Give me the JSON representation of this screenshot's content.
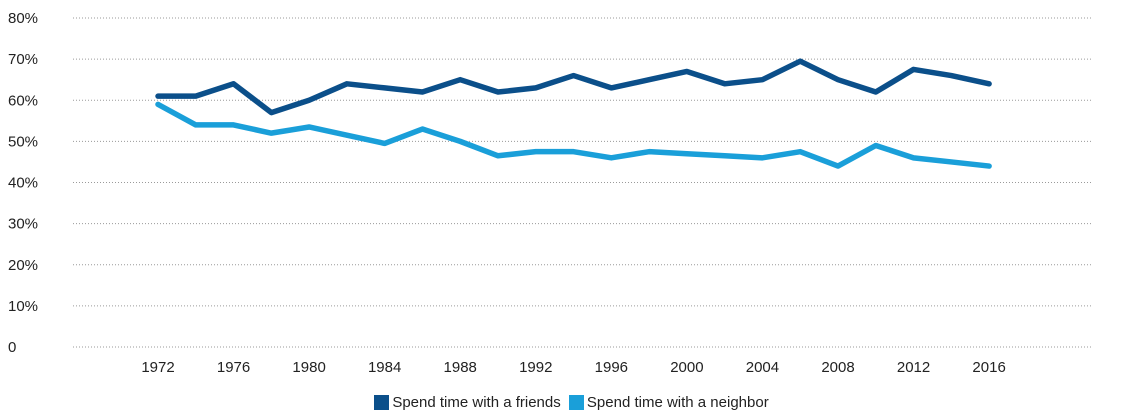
{
  "chart_data": {
    "type": "line",
    "x": [
      1972,
      1974,
      1976,
      1978,
      1980,
      1982,
      1984,
      1986,
      1988,
      1990,
      1992,
      1994,
      1996,
      1998,
      2000,
      2002,
      2004,
      2006,
      2008,
      2010,
      2012,
      2014,
      2016
    ],
    "xticks": [
      "1972",
      "1976",
      "1980",
      "1984",
      "1988",
      "1992",
      "1996",
      "2000",
      "2004",
      "2008",
      "2012",
      "2016"
    ],
    "xlim": [
      1967.5,
      2021.5
    ],
    "yticks": [
      "0",
      "10%",
      "20%",
      "30%",
      "40%",
      "50%",
      "60%",
      "70%",
      "80%"
    ],
    "ylim": [
      0,
      80
    ],
    "grid": "horizontal dotted",
    "legend_position": "bottom-center",
    "series": [
      {
        "name": "Spend time with a friends",
        "color": "#0b4f8a",
        "values": [
          61,
          61,
          64,
          57,
          60,
          64,
          63,
          62,
          65,
          62,
          63,
          66,
          63,
          65,
          67,
          64,
          65,
          69.5,
          65,
          62,
          67.5,
          66,
          64
        ]
      },
      {
        "name": "Spend time with a neighbor",
        "color": "#1a9fd9",
        "values": [
          59,
          54,
          54,
          52,
          53.5,
          51.5,
          49.5,
          53,
          50,
          46.5,
          47.5,
          47.5,
          46,
          47.5,
          47,
          46.5,
          46,
          47.5,
          44,
          49,
          46,
          45,
          44
        ]
      }
    ]
  }
}
